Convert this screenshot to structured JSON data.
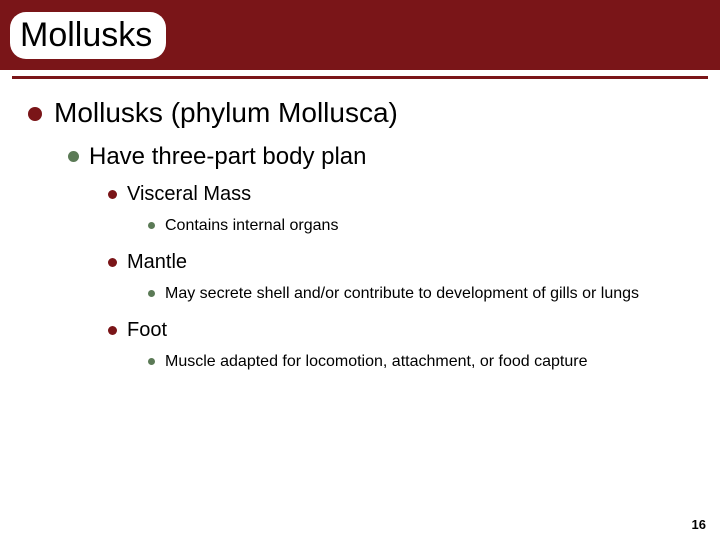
{
  "title": "Mollusks",
  "colors": {
    "title_band": "#7a1518",
    "underline": "#7a1518",
    "bullet_primary": "#7a1518",
    "bullet_secondary": "#5b7a56",
    "text": "#000000",
    "background": "#ffffff"
  },
  "typography": {
    "title_fontsize": 34,
    "lvl1_fontsize": 28,
    "lvl2_fontsize": 24,
    "lvl3_fontsize": 20,
    "lvl4_fontsize": 16,
    "font_family": "Arial"
  },
  "content": {
    "lvl1": {
      "text": "Mollusks (phylum Mollusca)"
    },
    "lvl2": {
      "text": "Have three-part body plan"
    },
    "parts": [
      {
        "name": "Visceral Mass",
        "detail": "Contains internal organs"
      },
      {
        "name": "Mantle",
        "detail": "May secrete shell and/or contribute to development of gills or lungs"
      },
      {
        "name": "Foot",
        "detail": "Muscle adapted for locomotion, attachment, or food capture"
      }
    ]
  },
  "page_number": "16"
}
